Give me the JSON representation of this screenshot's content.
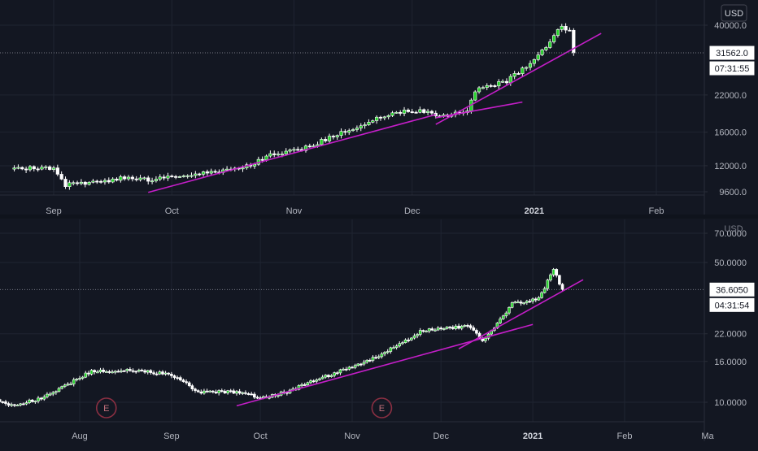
{
  "colors": {
    "background": "#131722",
    "grid": "#1f2431",
    "axis_text": "#b2b5be",
    "up_body": "#26d32b",
    "up_outline": "#ffffff",
    "down_body": "#ffffff",
    "trendline": "#c41ec8",
    "price_line": "#787b86",
    "earnings_marker": "#8a2f42"
  },
  "chart_data": [
    {
      "type": "candlestick",
      "panel": "top",
      "currency_label": "USD",
      "x_ticks": [
        "Sep",
        "Oct",
        "Nov",
        "Dec",
        "2021",
        "Feb"
      ],
      "y_ticks": [
        "40000.0",
        "22000.0",
        "16000.0",
        "12000.0",
        "9600.0"
      ],
      "y_scale": "log",
      "y_range": [
        9200,
        46500
      ],
      "last_price": "31562.0",
      "countdown": "07:31:55",
      "grid": true,
      "anchors": [
        {
          "date": "Aug 22",
          "price": 11700
        },
        {
          "date": "Sep 1",
          "price": 11800
        },
        {
          "date": "Sep 4",
          "price": 10200
        },
        {
          "date": "Sep 10",
          "price": 10300
        },
        {
          "date": "Sep 20",
          "price": 10900
        },
        {
          "date": "Sep 25",
          "price": 10600
        },
        {
          "date": "Oct 10",
          "price": 11300
        },
        {
          "date": "Oct 20",
          "price": 11900
        },
        {
          "date": "Oct 25",
          "price": 13000
        },
        {
          "date": "Nov 5",
          "price": 14100
        },
        {
          "date": "Nov 10",
          "price": 15300
        },
        {
          "date": "Nov 25",
          "price": 18600
        },
        {
          "date": "Dec 1",
          "price": 19300
        },
        {
          "date": "Dec 5",
          "price": 19000
        },
        {
          "date": "Dec 10",
          "price": 18300
        },
        {
          "date": "Dec 15",
          "price": 19400
        },
        {
          "date": "Dec 17",
          "price": 23000
        },
        {
          "date": "Dec 25",
          "price": 24700
        },
        {
          "date": "Dec 31",
          "price": 28900
        },
        {
          "date": "Jan 3",
          "price": 32000
        },
        {
          "date": "Jan 8",
          "price": 40000
        },
        {
          "date": "Jan 10",
          "price": 38000
        },
        {
          "date": "Jan 11",
          "price": 31562
        }
      ],
      "trendlines": [
        {
          "from": {
            "date": "Sep 25",
            "price": 9550
          },
          "to": {
            "date": "Dec 7",
            "price": 18600
          }
        },
        {
          "from": {
            "date": "Dec 7",
            "price": 18100
          },
          "to": {
            "date": "Dec 29",
            "price": 20700
          }
        },
        {
          "from": {
            "date": "Dec 7",
            "price": 17100
          },
          "to": {
            "date": "Jan 18",
            "price": 37300
          }
        }
      ]
    },
    {
      "type": "candlestick",
      "panel": "bottom",
      "currency_label": "USD",
      "x_ticks": [
        "Aug",
        "Sep",
        "Oct",
        "Nov",
        "Dec",
        "2021",
        "Feb",
        "Ma"
      ],
      "y_ticks": [
        "70.0000",
        "50.0000",
        "22.0000",
        "16.0000",
        "10.0000"
      ],
      "y_scale": "log",
      "y_range": [
        8.5,
        74
      ],
      "last_price": "36.6050",
      "countdown": "04:31:54",
      "grid": true,
      "events": [
        {
          "label": "E",
          "date": "Aug 10"
        },
        {
          "label": "E",
          "date": "Nov 11"
        }
      ],
      "anchors": [
        {
          "date": "Jul 1",
          "price": 10.5
        },
        {
          "date": "Jul 10",
          "price": 9.6
        },
        {
          "date": "Jul 20",
          "price": 10.6
        },
        {
          "date": "Aug 5",
          "price": 14.3
        },
        {
          "date": "Aug 20",
          "price": 14.4
        },
        {
          "date": "Sep 1",
          "price": 13.8
        },
        {
          "date": "Sep 10",
          "price": 11.3
        },
        {
          "date": "Sep 25",
          "price": 11.2
        },
        {
          "date": "Oct 1",
          "price": 10.5
        },
        {
          "date": "Oct 10",
          "price": 11.3
        },
        {
          "date": "Oct 20",
          "price": 13.0
        },
        {
          "date": "Nov 1",
          "price": 15.0
        },
        {
          "date": "Nov 10",
          "price": 17.0
        },
        {
          "date": "Nov 25",
          "price": 23.0
        },
        {
          "date": "Dec 10",
          "price": 24.0
        },
        {
          "date": "Dec 15",
          "price": 20.5
        },
        {
          "date": "Dec 20",
          "price": 24.5
        },
        {
          "date": "Dec 25",
          "price": 31.0
        },
        {
          "date": "Jan 3",
          "price": 33.0
        },
        {
          "date": "Jan 8",
          "price": 46.0
        },
        {
          "date": "Jan 11",
          "price": 36.605
        }
      ],
      "trendlines": [
        {
          "from": {
            "date": "Sep 23",
            "price": 9.6
          },
          "to": {
            "date": "Jan 1",
            "price": 24.5
          }
        },
        {
          "from": {
            "date": "Dec 7",
            "price": 18.5
          },
          "to": {
            "date": "Jan 18",
            "price": 41.0
          }
        }
      ]
    }
  ]
}
